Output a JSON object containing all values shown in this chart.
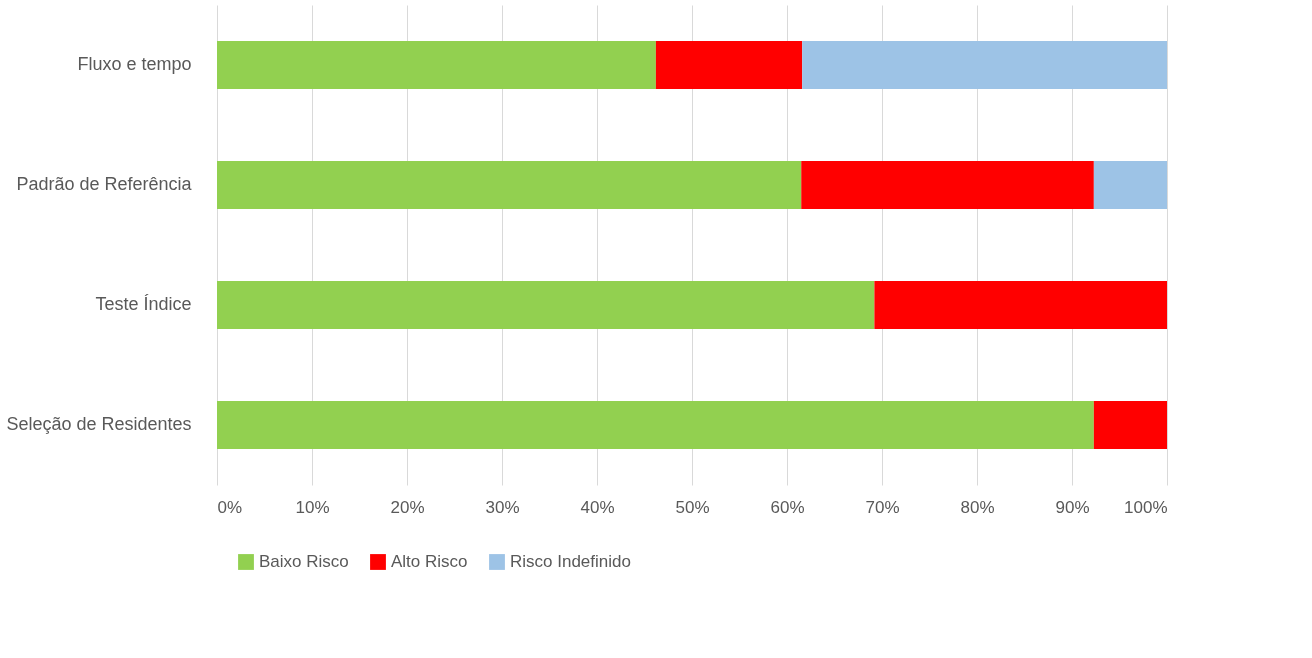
{
  "chart_data": {
    "type": "bar",
    "orientation": "horizontal",
    "stacked": true,
    "categories": [
      "Fluxo e tempo",
      "Padrão de Referência",
      "Teste Índice",
      "Seleção de Residentes"
    ],
    "series": [
      {
        "name": "Baixo Risco",
        "color": "#92d050",
        "values": [
          46.2,
          61.5,
          69.2,
          92.3
        ]
      },
      {
        "name": "Alto Risco",
        "color": "#ff0000",
        "values": [
          15.4,
          30.8,
          30.8,
          7.7
        ]
      },
      {
        "name": "Risco Indefinido",
        "color": "#9dc3e6",
        "values": [
          38.4,
          7.7,
          0,
          0
        ]
      }
    ],
    "xlim": [
      0,
      100
    ],
    "xticks": [
      {
        "value": 0,
        "label": "0%"
      },
      {
        "value": 10,
        "label": "10%"
      },
      {
        "value": 20,
        "label": "20%"
      },
      {
        "value": 30,
        "label": "30%"
      },
      {
        "value": 40,
        "label": "40%"
      },
      {
        "value": 50,
        "label": "50%"
      },
      {
        "value": 60,
        "label": "60%"
      },
      {
        "value": 70,
        "label": "70%"
      },
      {
        "value": 80,
        "label": "80%"
      },
      {
        "value": 90,
        "label": "90%"
      },
      {
        "value": 100,
        "label": "100%"
      }
    ],
    "grid": "x",
    "legend": "bottom"
  }
}
